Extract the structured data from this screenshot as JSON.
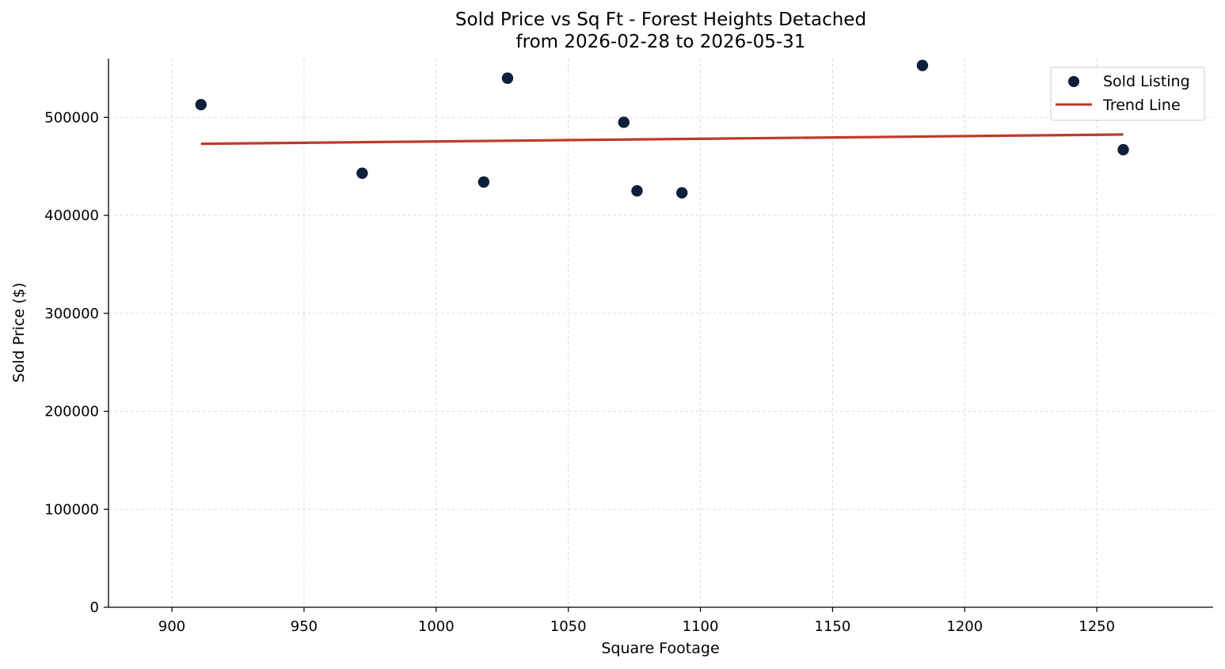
{
  "chart_data": {
    "type": "scatter",
    "title": "Sold Price vs Sq Ft - Forest Heights Detached",
    "subtitle": "from 2026-02-28 to 2026-05-31",
    "xlabel": "Square Footage",
    "ylabel": "Sold Price ($)",
    "xlim": [
      876,
      1294
    ],
    "ylim": [
      0,
      560000
    ],
    "x_ticks": [
      900,
      950,
      1000,
      1050,
      1100,
      1150,
      1200,
      1250
    ],
    "y_ticks": [
      0,
      100000,
      200000,
      300000,
      400000,
      500000
    ],
    "grid": true,
    "legend_position": "top-right",
    "series": [
      {
        "name": "Sold Listing",
        "kind": "scatter",
        "color": "#0d1f3a",
        "x": [
          911,
          972,
          1018,
          1027,
          1071,
          1076,
          1093,
          1184,
          1260
        ],
        "y": [
          513000,
          443000,
          434000,
          540000,
          495000,
          425000,
          423000,
          553000,
          467000
        ]
      },
      {
        "name": "Trend Line",
        "kind": "line",
        "color": "#c0392b",
        "x": [
          911,
          1260
        ],
        "y": [
          473000,
          482500
        ]
      }
    ]
  }
}
